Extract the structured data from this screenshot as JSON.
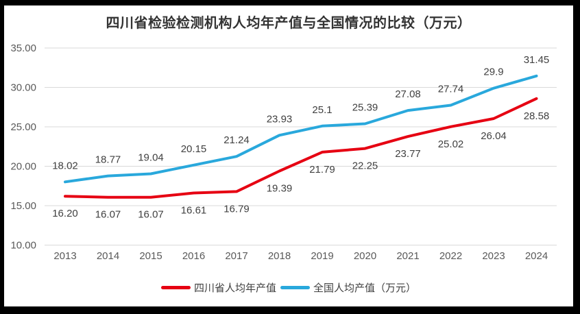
{
  "frame": {
    "background_color": "#000000",
    "chart_background_color": "#ffffff"
  },
  "chart_data": {
    "type": "line",
    "title": "四川省检验检测机构人均年产值与全国情况的比较（万元）",
    "categories": [
      "2013",
      "2014",
      "2015",
      "2016",
      "2017",
      "2018",
      "2019",
      "2020",
      "2021",
      "2022",
      "2023",
      "2024"
    ],
    "series": [
      {
        "name": "四川省人均年产值",
        "color": "#e60012",
        "values": [
          16.2,
          16.07,
          16.07,
          16.61,
          16.79,
          19.39,
          21.79,
          22.25,
          23.77,
          25.02,
          26.04,
          28.58
        ],
        "labels": [
          "16.20",
          "16.07",
          "16.07",
          "16.61",
          "16.79",
          "19.39",
          "21.79",
          "22.25",
          "23.77",
          "25.02",
          "26.04",
          "28.58"
        ],
        "label_position": "below"
      },
      {
        "name": "全国人均产值（万元）",
        "color": "#29a8dc",
        "values": [
          18.02,
          18.77,
          19.04,
          20.15,
          21.24,
          23.93,
          25.1,
          25.39,
          27.08,
          27.74,
          29.9,
          31.45
        ],
        "labels": [
          "18.02",
          "18.77",
          "19.04",
          "20.15",
          "21.24",
          "23.93",
          "25.1",
          "25.39",
          "27.08",
          "27.74",
          "29.9",
          "31.45"
        ],
        "label_position": "above"
      }
    ],
    "y_axis": {
      "min": 10,
      "max": 35,
      "step": 5,
      "tick_labels": [
        "10.00",
        "15.00",
        "20.00",
        "25.00",
        "30.00",
        "35.00"
      ]
    },
    "x_axis": {
      "tick_labels": [
        "2013",
        "2014",
        "2015",
        "2016",
        "2017",
        "2018",
        "2019",
        "2020",
        "2021",
        "2022",
        "2023",
        "2024"
      ]
    },
    "grid": true,
    "legend_position": "bottom",
    "style_colors": {
      "gridline": "#d9d9d9",
      "tick_text": "#595959",
      "data_label_text": "#404040",
      "title_text": "#333333",
      "legend_text": "#404040"
    }
  }
}
